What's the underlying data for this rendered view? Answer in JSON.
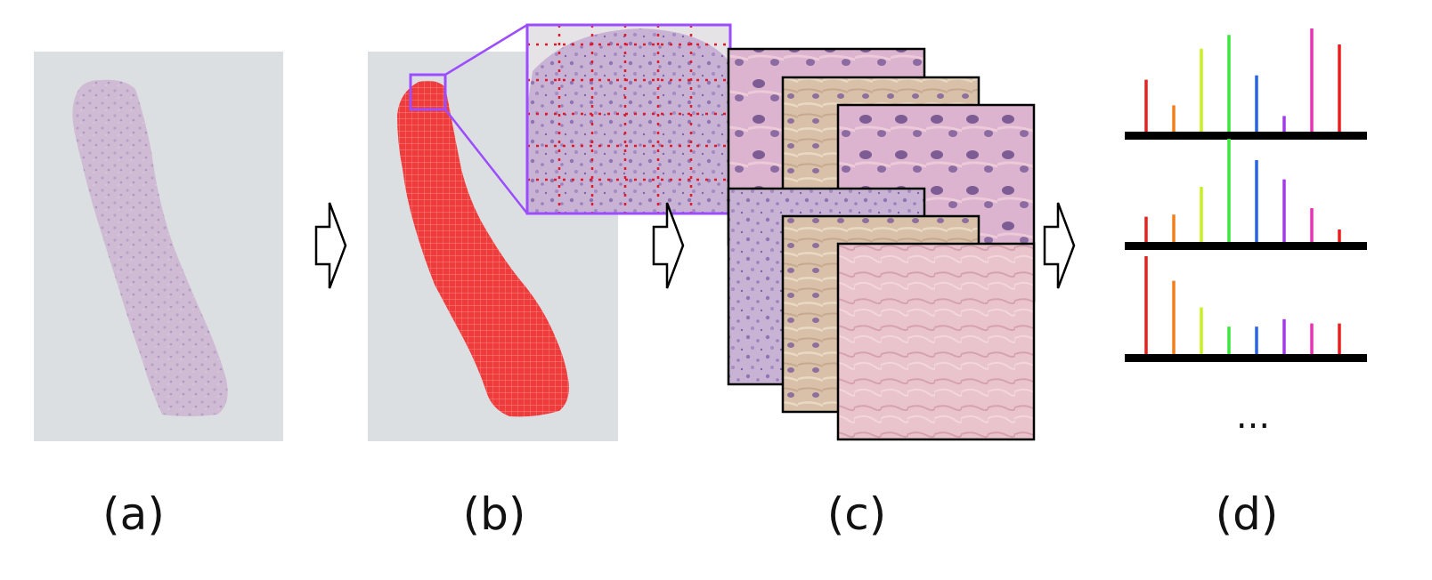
{
  "panels": [
    {
      "id": "a",
      "label": "(a)",
      "content": "whole slide image"
    },
    {
      "id": "b",
      "label": "(b)",
      "content": "tissue mask with tile grid and zoomed inset"
    },
    {
      "id": "c",
      "label": "(c)",
      "content": "stack of extracted tiles"
    },
    {
      "id": "d",
      "label": "(d)",
      "content": "per-tile histograms"
    }
  ],
  "ellipsis": "...",
  "colors": {
    "slide_bg": "#dcdfe2",
    "tissue": "#c9b2ce",
    "mask": "#ee3b3b",
    "inset_border": "#9b4dff",
    "arrow_stroke": "#000000",
    "axis": "#000000"
  },
  "histograms": [
    {
      "bars": [
        {
          "color": "#e61f1f",
          "value": 0.52
        },
        {
          "color": "#f07f1e",
          "value": 0.28
        },
        {
          "color": "#c6f022",
          "value": 0.81
        },
        {
          "color": "#3be63b",
          "value": 0.94
        },
        {
          "color": "#2864e6",
          "value": 0.56
        },
        {
          "color": "#a23be6",
          "value": 0.18
        },
        {
          "color": "#ec2fb6",
          "value": 1.0
        },
        {
          "color": "#e61f1f",
          "value": 0.85
        }
      ]
    },
    {
      "bars": [
        {
          "color": "#e61f1f",
          "value": 0.27
        },
        {
          "color": "#f07f1e",
          "value": 0.29
        },
        {
          "color": "#c6f022",
          "value": 0.55
        },
        {
          "color": "#3be63b",
          "value": 1.0
        },
        {
          "color": "#2864e6",
          "value": 0.8
        },
        {
          "color": "#a23be6",
          "value": 0.62
        },
        {
          "color": "#ec2fb6",
          "value": 0.35
        },
        {
          "color": "#e61f1f",
          "value": 0.15
        }
      ]
    },
    {
      "bars": [
        {
          "color": "#e61f1f",
          "value": 0.95
        },
        {
          "color": "#f07f1e",
          "value": 0.72
        },
        {
          "color": "#c6f022",
          "value": 0.47
        },
        {
          "color": "#3be63b",
          "value": 0.29
        },
        {
          "color": "#2864e6",
          "value": 0.29
        },
        {
          "color": "#a23be6",
          "value": 0.36
        },
        {
          "color": "#ec2fb6",
          "value": 0.32
        },
        {
          "color": "#e61f1f",
          "value": 0.32
        }
      ]
    }
  ]
}
